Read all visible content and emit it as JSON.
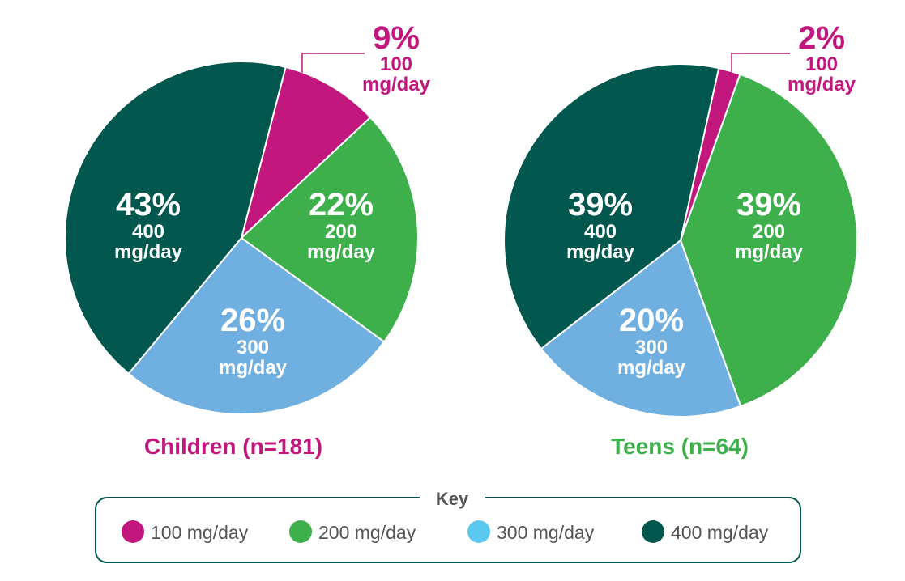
{
  "chart_data": [
    {
      "type": "pie",
      "title": "Children  (n=181)",
      "title_color": "#c2187d",
      "slices": [
        {
          "label": "100",
          "unit": "mg/day",
          "percent_label": "9%",
          "value": 9,
          "color": "#c2187d",
          "outside": true
        },
        {
          "label": "200",
          "unit": "mg/day",
          "percent_label": "22%",
          "value": 22,
          "color": "#3db04b"
        },
        {
          "label": "300",
          "unit": "mg/day",
          "percent_label": "26%",
          "value": 26,
          "color": "#6fb0e0"
        },
        {
          "label": "400",
          "unit": "mg/day",
          "percent_label": "43%",
          "value": 43,
          "color": "#02584e"
        }
      ]
    },
    {
      "type": "pie",
      "title": "Teens (n=64)",
      "title_color": "#3db04b",
      "slices": [
        {
          "label": "100",
          "unit": "mg/day",
          "percent_label": "2%",
          "value": 2,
          "color": "#c2187d",
          "outside": true
        },
        {
          "label": "200",
          "unit": "mg/day",
          "percent_label": "39%",
          "value": 39,
          "color": "#3db04b"
        },
        {
          "label": "300",
          "unit": "mg/day",
          "percent_label": "20%",
          "value": 20,
          "color": "#6fb0e0"
        },
        {
          "label": "400",
          "unit": "mg/day",
          "percent_label": "39%",
          "value": 39,
          "color": "#02584e"
        }
      ]
    }
  ],
  "legend": {
    "title": "Key",
    "border_color": "#02584e",
    "items": [
      {
        "label": "100 mg/day",
        "color": "#c2187d"
      },
      {
        "label": "200 mg/day",
        "color": "#3db04b"
      },
      {
        "label": "300 mg/day",
        "color": "#5bc8f0"
      },
      {
        "label": "400 mg/day",
        "color": "#02584e"
      }
    ]
  }
}
